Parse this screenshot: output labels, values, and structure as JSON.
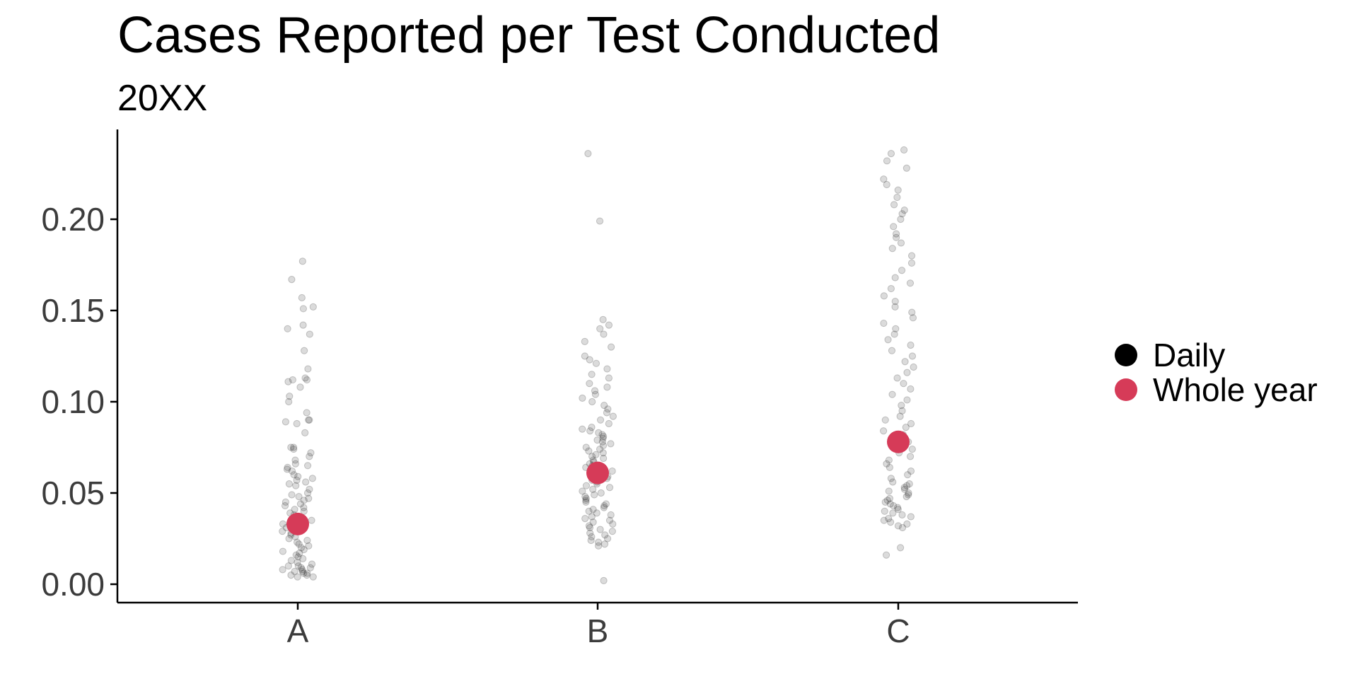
{
  "chart_data": {
    "type": "scatter",
    "title": "Cases Reported per Test Conducted",
    "subtitle": "20XX",
    "xlabel": "",
    "ylabel": "",
    "categories": [
      "A",
      "B",
      "C"
    ],
    "y_ticks": [
      "0.00",
      "0.05",
      "0.10",
      "0.15",
      "0.20"
    ],
    "ylim": [
      -0.01,
      0.25
    ],
    "grid": false,
    "legend_position": "right",
    "colors": {
      "daily": "#000000",
      "whole_year": "#d63b58"
    },
    "series": [
      {
        "name": "Daily",
        "note": "Jittered daily values; approximate distribution shown as sampled points per category",
        "points": {
          "A": [
            0.177,
            0.167,
            0.157,
            0.152,
            0.151,
            0.142,
            0.14,
            0.137,
            0.128,
            0.118,
            0.113,
            0.112,
            0.112,
            0.111,
            0.108,
            0.103,
            0.1,
            0.094,
            0.09,
            0.09,
            0.089,
            0.088,
            0.083,
            0.075,
            0.075,
            0.074,
            0.072,
            0.07,
            0.068,
            0.066,
            0.065,
            0.064,
            0.063,
            0.062,
            0.06,
            0.059,
            0.058,
            0.057,
            0.056,
            0.055,
            0.054,
            0.052,
            0.05,
            0.049,
            0.048,
            0.047,
            0.046,
            0.045,
            0.044,
            0.043,
            0.042,
            0.041,
            0.04,
            0.039,
            0.038,
            0.037,
            0.036,
            0.035,
            0.034,
            0.033,
            0.032,
            0.031,
            0.03,
            0.029,
            0.028,
            0.027,
            0.026,
            0.025,
            0.024,
            0.023,
            0.022,
            0.021,
            0.02,
            0.019,
            0.018,
            0.017,
            0.016,
            0.015,
            0.014,
            0.013,
            0.012,
            0.011,
            0.01,
            0.01,
            0.009,
            0.009,
            0.008,
            0.008,
            0.007,
            0.007,
            0.006,
            0.006,
            0.005,
            0.005,
            0.004,
            0.004
          ],
          "B": [
            0.236,
            0.199,
            0.145,
            0.142,
            0.14,
            0.137,
            0.133,
            0.13,
            0.125,
            0.123,
            0.121,
            0.118,
            0.115,
            0.113,
            0.11,
            0.108,
            0.106,
            0.104,
            0.102,
            0.1,
            0.098,
            0.096,
            0.094,
            0.092,
            0.09,
            0.088,
            0.086,
            0.085,
            0.084,
            0.083,
            0.082,
            0.081,
            0.08,
            0.079,
            0.078,
            0.077,
            0.076,
            0.075,
            0.074,
            0.073,
            0.072,
            0.071,
            0.07,
            0.069,
            0.068,
            0.067,
            0.066,
            0.065,
            0.064,
            0.063,
            0.062,
            0.061,
            0.06,
            0.059,
            0.058,
            0.057,
            0.056,
            0.055,
            0.054,
            0.053,
            0.052,
            0.051,
            0.05,
            0.049,
            0.048,
            0.047,
            0.046,
            0.045,
            0.044,
            0.043,
            0.042,
            0.041,
            0.04,
            0.039,
            0.038,
            0.037,
            0.036,
            0.035,
            0.034,
            0.033,
            0.032,
            0.031,
            0.03,
            0.029,
            0.028,
            0.027,
            0.026,
            0.025,
            0.024,
            0.023,
            0.022,
            0.021,
            0.002
          ],
          "C": [
            0.238,
            0.236,
            0.232,
            0.228,
            0.222,
            0.219,
            0.216,
            0.212,
            0.208,
            0.205,
            0.203,
            0.2,
            0.196,
            0.192,
            0.19,
            0.187,
            0.184,
            0.18,
            0.176,
            0.172,
            0.168,
            0.165,
            0.162,
            0.158,
            0.155,
            0.152,
            0.149,
            0.146,
            0.143,
            0.14,
            0.137,
            0.134,
            0.131,
            0.128,
            0.125,
            0.122,
            0.119,
            0.116,
            0.113,
            0.11,
            0.107,
            0.104,
            0.101,
            0.098,
            0.095,
            0.092,
            0.09,
            0.088,
            0.086,
            0.084,
            0.082,
            0.08,
            0.078,
            0.076,
            0.074,
            0.072,
            0.07,
            0.068,
            0.066,
            0.064,
            0.062,
            0.06,
            0.058,
            0.056,
            0.055,
            0.054,
            0.053,
            0.052,
            0.051,
            0.05,
            0.049,
            0.048,
            0.047,
            0.046,
            0.045,
            0.044,
            0.043,
            0.042,
            0.041,
            0.04,
            0.039,
            0.038,
            0.037,
            0.036,
            0.035,
            0.034,
            0.033,
            0.032,
            0.031,
            0.02,
            0.016
          ]
        }
      },
      {
        "name": "Whole year",
        "values": {
          "A": 0.033,
          "B": 0.061,
          "C": 0.078
        }
      }
    ]
  }
}
